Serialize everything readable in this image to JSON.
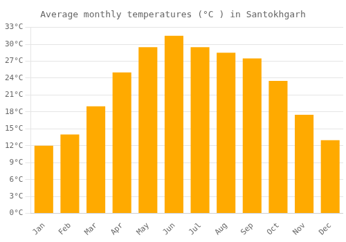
{
  "chart_data": {
    "type": "bar",
    "title": "Average monthly temperatures (°C ) in Santokhgarh",
    "categories": [
      "Jan",
      "Feb",
      "Mar",
      "Apr",
      "May",
      "Jun",
      "Jul",
      "Aug",
      "Sep",
      "Oct",
      "Nov",
      "Dec"
    ],
    "values": [
      12,
      14,
      19,
      25,
      29.5,
      31.5,
      29.5,
      28.5,
      27.5,
      23.5,
      17.5,
      13
    ],
    "color": "#FFAA00",
    "ylim": [
      0,
      33
    ],
    "yticks": [
      {
        "value": 0,
        "label": "0°C"
      },
      {
        "value": 3,
        "label": "3°C"
      },
      {
        "value": 6,
        "label": "6°C"
      },
      {
        "value": 9,
        "label": "9°C"
      },
      {
        "value": 12,
        "label": "12°C"
      },
      {
        "value": 15,
        "label": "15°C"
      },
      {
        "value": 18,
        "label": "18°C"
      },
      {
        "value": 21,
        "label": "21°C"
      },
      {
        "value": 24,
        "label": "24°C"
      },
      {
        "value": 27,
        "label": "27°C"
      },
      {
        "value": 30,
        "label": "30°C"
      },
      {
        "value": 33,
        "label": "33°C"
      }
    ],
    "grid": true
  }
}
